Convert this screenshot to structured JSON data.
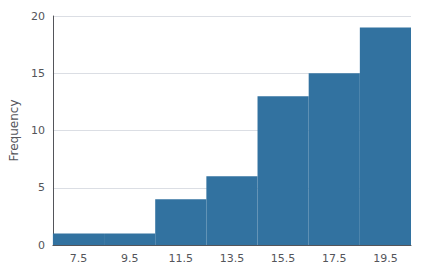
{
  "chart_data": {
    "type": "histogram",
    "bins": [
      6.5,
      8.5,
      10.5,
      12.5,
      14.5,
      16.5,
      18.5,
      20.5
    ],
    "values": [
      1,
      1,
      4,
      6,
      13,
      15,
      19
    ],
    "color": "#3272a0",
    "ylabel": "Frequency",
    "xlim": [
      6.5,
      20.5
    ],
    "ylim": [
      0,
      20
    ],
    "xticks": [
      7.5,
      9.5,
      11.5,
      13.5,
      15.5,
      17.5,
      19.5
    ],
    "yticks": [
      0,
      5,
      10,
      15,
      20
    ],
    "grid": true
  }
}
